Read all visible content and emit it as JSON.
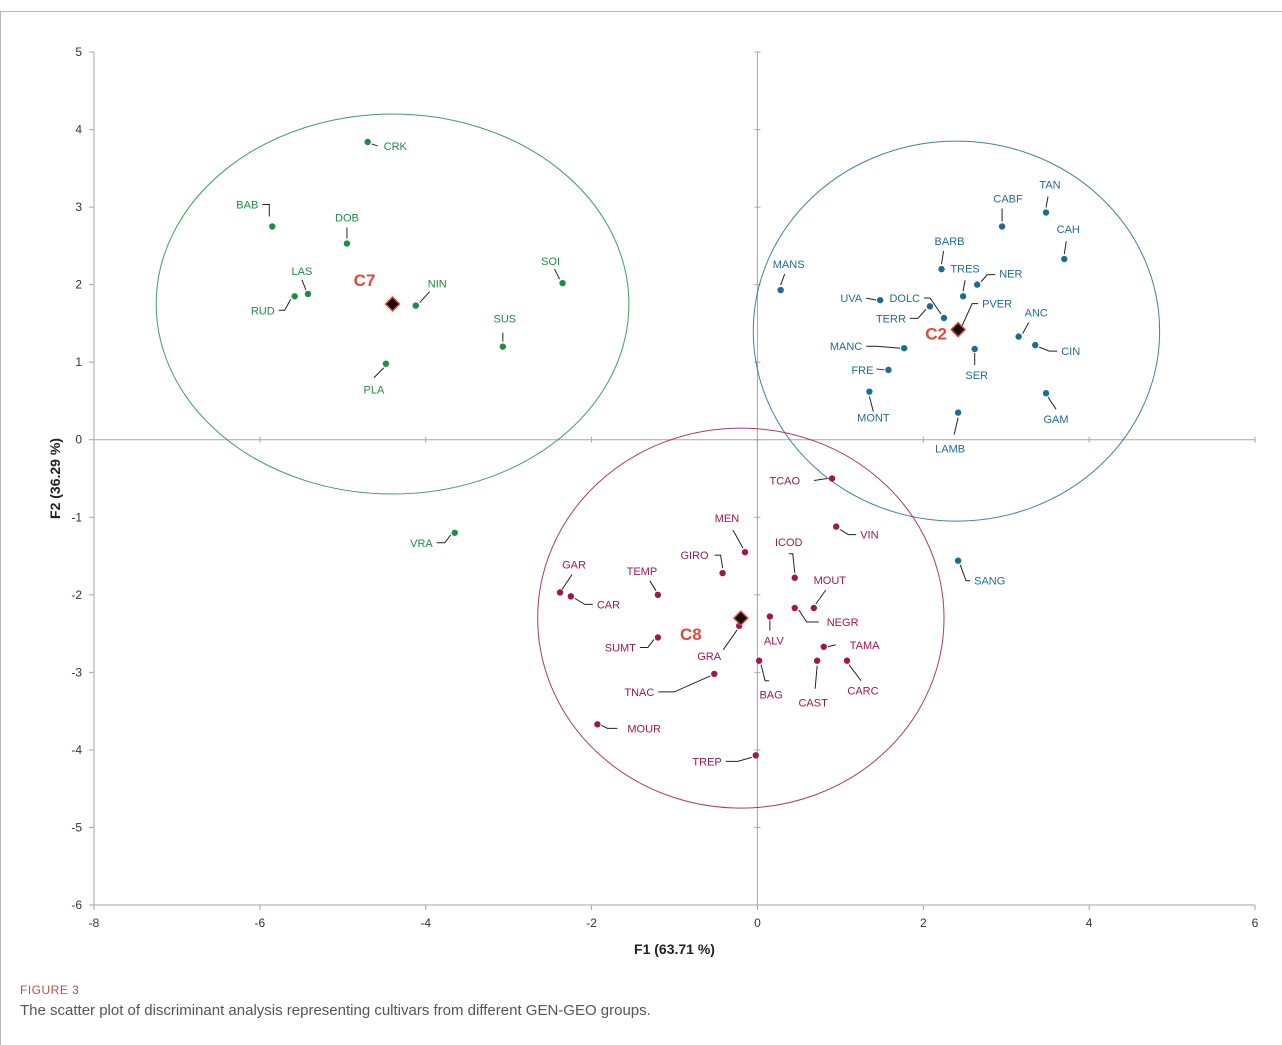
{
  "figure": {
    "label": "FIGURE 3",
    "caption": "The scatter plot of discriminant analysis representing cultivars from different GEN-GEO groups."
  },
  "chart_data": {
    "type": "scatter",
    "xlabel": "F1 (63.71 %)",
    "ylabel": "F2 (36.29 %)",
    "xlim": [
      -8,
      6
    ],
    "ylim": [
      -6,
      5
    ],
    "xticks": [
      -8,
      -6,
      -4,
      -2,
      0,
      2,
      4,
      6
    ],
    "yticks": [
      -6,
      -5,
      -4,
      -3,
      -2,
      -1,
      0,
      1,
      2,
      3,
      4,
      5
    ],
    "grid": false,
    "legend": "none",
    "colors": {
      "C7": "#1e8c45",
      "C2": "#1f6b91",
      "C8": "#a0164f",
      "centroid_label": "#e8463c",
      "axis": "#a6a6a6"
    },
    "series": [
      {
        "name": "C7",
        "circle": {
          "cx": -4.4,
          "cy": 1.75,
          "rx": 2.85,
          "ry": 2.45
        },
        "centroid": {
          "x": -4.4,
          "y": 1.75
        },
        "points": [
          {
            "label": "CRK",
            "x": -4.7,
            "y": 3.84
          },
          {
            "label": "BAB",
            "x": -5.85,
            "y": 2.75
          },
          {
            "label": "DOB",
            "x": -4.95,
            "y": 2.53
          },
          {
            "label": "SOI",
            "x": -2.35,
            "y": 2.02
          },
          {
            "label": "LAS",
            "x": -5.42,
            "y": 1.88
          },
          {
            "label": "RUD",
            "x": -5.58,
            "y": 1.85
          },
          {
            "label": "NIN",
            "x": -4.12,
            "y": 1.73
          },
          {
            "label": "SUS",
            "x": -3.07,
            "y": 1.2
          },
          {
            "label": "PLA",
            "x": -4.48,
            "y": 0.98
          },
          {
            "label": "VRA",
            "x": -3.65,
            "y": -1.2
          }
        ]
      },
      {
        "name": "C2",
        "circle": {
          "cx": 2.4,
          "cy": 1.4,
          "rx": 2.45,
          "ry": 2.45
        },
        "centroid": {
          "x": 2.42,
          "y": 1.42
        },
        "points": [
          {
            "label": "TAN",
            "x": 3.48,
            "y": 2.93
          },
          {
            "label": "CABF",
            "x": 2.95,
            "y": 2.75
          },
          {
            "label": "CAH",
            "x": 3.7,
            "y": 2.33
          },
          {
            "label": "BARB",
            "x": 2.22,
            "y": 2.2
          },
          {
            "label": "TRES",
            "x": 2.48,
            "y": 1.85
          },
          {
            "label": "NER",
            "x": 2.65,
            "y": 2.0
          },
          {
            "label": "MANS",
            "x": 0.28,
            "y": 1.93
          },
          {
            "label": "UVA",
            "x": 1.48,
            "y": 1.8
          },
          {
            "label": "DOLC",
            "x": 2.25,
            "y": 1.57
          },
          {
            "label": "TERR",
            "x": 2.08,
            "y": 1.72
          },
          {
            "label": "PVER",
            "x": 2.42,
            "y": 1.42
          },
          {
            "label": "ANC",
            "x": 3.15,
            "y": 1.33
          },
          {
            "label": "MANC",
            "x": 1.77,
            "y": 1.18
          },
          {
            "label": "CIN",
            "x": 3.35,
            "y": 1.22
          },
          {
            "label": "SER",
            "x": 2.62,
            "y": 1.17
          },
          {
            "label": "FRE",
            "x": 1.58,
            "y": 0.9
          },
          {
            "label": "MONT",
            "x": 1.35,
            "y": 0.62
          },
          {
            "label": "GAM",
            "x": 3.48,
            "y": 0.6
          },
          {
            "label": "LAMB",
            "x": 2.42,
            "y": 0.35
          },
          {
            "label": "SANG",
            "x": 2.42,
            "y": -1.56
          }
        ]
      },
      {
        "name": "C8",
        "circle": {
          "cx": -0.2,
          "cy": -2.3,
          "rx": 2.45,
          "ry": 2.45
        },
        "centroid": {
          "x": -0.2,
          "y": -2.3
        },
        "points": [
          {
            "label": "TCAO",
            "x": 0.9,
            "y": -0.5
          },
          {
            "label": "VIN",
            "x": 0.95,
            "y": -1.12
          },
          {
            "label": "MEN",
            "x": -0.15,
            "y": -1.45
          },
          {
            "label": "GIRO",
            "x": -0.42,
            "y": -1.72
          },
          {
            "label": "ICOD",
            "x": 0.45,
            "y": -1.78
          },
          {
            "label": "MOUT",
            "x": 0.68,
            "y": -2.17
          },
          {
            "label": "GAR",
            "x": -2.38,
            "y": -1.97
          },
          {
            "label": "CAR",
            "x": -2.25,
            "y": -2.02
          },
          {
            "label": "TEMP",
            "x": -1.2,
            "y": -2.0
          },
          {
            "label": "NEGR",
            "x": 0.45,
            "y": -2.17
          },
          {
            "label": "ALV",
            "x": 0.15,
            "y": -2.28
          },
          {
            "label": "GRA",
            "x": -0.22,
            "y": -2.4
          },
          {
            "label": "SUMT",
            "x": -1.2,
            "y": -2.55
          },
          {
            "label": "TAMA",
            "x": 0.8,
            "y": -2.67
          },
          {
            "label": "BAG",
            "x": 0.02,
            "y": -2.85
          },
          {
            "label": "CAST",
            "x": 0.72,
            "y": -2.85
          },
          {
            "label": "CARC",
            "x": 1.08,
            "y": -2.85
          },
          {
            "label": "TNAC",
            "x": -0.52,
            "y": -3.02
          },
          {
            "label": "MOUR",
            "x": -1.93,
            "y": -3.67
          },
          {
            "label": "TREP",
            "x": -0.02,
            "y": -4.07
          }
        ]
      }
    ]
  }
}
